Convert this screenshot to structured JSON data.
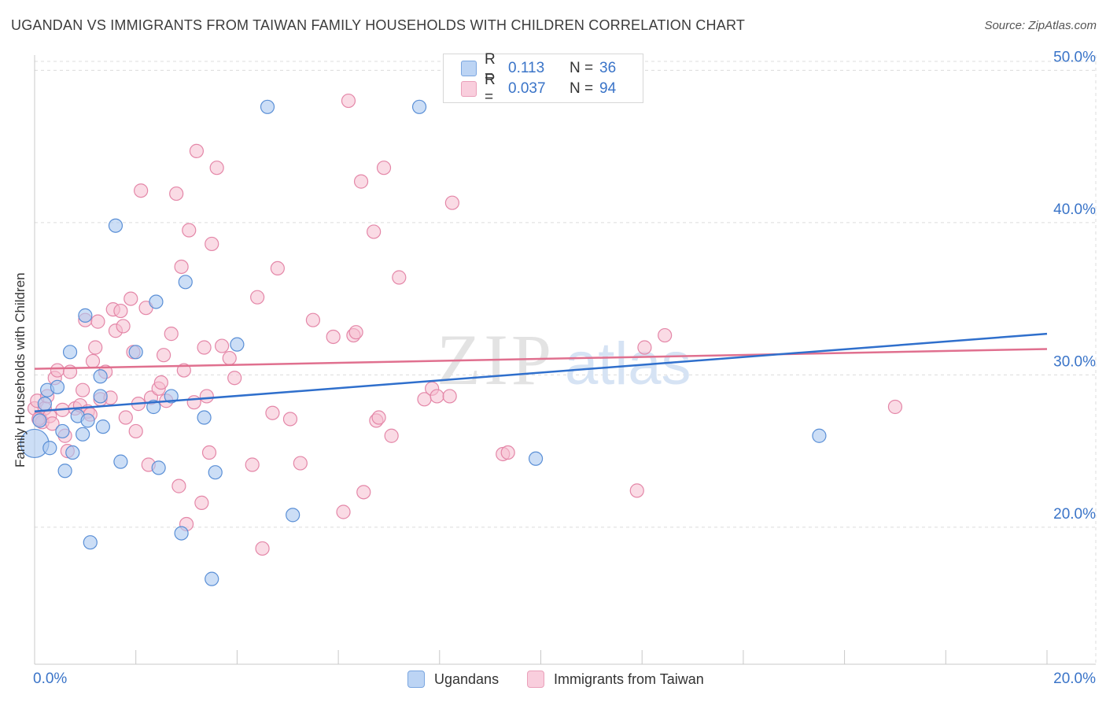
{
  "title": "UGANDAN VS IMMIGRANTS FROM TAIWAN FAMILY HOUSEHOLDS WITH CHILDREN CORRELATION CHART",
  "source": "Source: ZipAtlas.com",
  "watermark": {
    "zip": "ZIP",
    "atlas": "atlas"
  },
  "legend": {
    "ugandans": {
      "r_label": "R =",
      "r_value": "0.113",
      "n_label": "N =",
      "n_value": "36"
    },
    "taiwan": {
      "r_label": "R =",
      "r_value": "0.037",
      "n_label": "N =",
      "n_value": "94"
    }
  },
  "colors": {
    "ugandans_fill": "#aac8f0",
    "ugandans_stroke": "#5a8fd6",
    "ugandans_line": "#2f6fcc",
    "taiwan_fill": "#f6bdd0",
    "taiwan_stroke": "#e487a8",
    "taiwan_line": "#e0708f",
    "value_text": "#3a74c8",
    "grid": "#dcdcdc"
  },
  "chart_data": {
    "type": "scatter",
    "xlabel": "",
    "ylabel": "Family Households with Children",
    "xlim": [
      0,
      20
    ],
    "ylim": [
      11,
      51
    ],
    "x_ticks": [
      0,
      2,
      4,
      6,
      8,
      10,
      12,
      14,
      16,
      18,
      20
    ],
    "x_tick_labels": [
      "0.0%",
      "20.0%"
    ],
    "y_ticks": [
      20,
      30,
      40,
      50
    ],
    "y_tick_labels": [
      "20.0%",
      "30.0%",
      "40.0%",
      "50.0%"
    ],
    "grid": true,
    "legend_position": "top-center",
    "series": [
      {
        "name": "Ugandans",
        "points": [
          [
            0.0,
            25.5
          ],
          [
            0.1,
            27.0
          ],
          [
            0.2,
            28.1
          ],
          [
            0.25,
            29.0
          ],
          [
            0.3,
            25.2
          ],
          [
            0.45,
            29.2
          ],
          [
            0.55,
            26.3
          ],
          [
            0.6,
            23.7
          ],
          [
            0.7,
            31.5
          ],
          [
            0.75,
            24.9
          ],
          [
            0.85,
            27.3
          ],
          [
            0.95,
            26.1
          ],
          [
            1.0,
            33.9
          ],
          [
            1.05,
            27.0
          ],
          [
            1.1,
            19.0
          ],
          [
            1.3,
            28.6
          ],
          [
            1.3,
            29.9
          ],
          [
            1.35,
            26.6
          ],
          [
            1.7,
            24.3
          ],
          [
            1.6,
            39.8
          ],
          [
            2.0,
            31.5
          ],
          [
            2.35,
            27.9
          ],
          [
            2.4,
            34.8
          ],
          [
            2.45,
            23.9
          ],
          [
            2.7,
            28.6
          ],
          [
            2.9,
            19.6
          ],
          [
            2.98,
            36.1
          ],
          [
            3.35,
            27.2
          ],
          [
            3.5,
            16.6
          ],
          [
            3.57,
            23.6
          ],
          [
            4.0,
            32.0
          ],
          [
            4.6,
            47.6
          ],
          [
            5.1,
            20.8
          ],
          [
            7.6,
            47.6
          ],
          [
            9.9,
            24.5
          ],
          [
            15.5,
            26.0
          ]
        ]
      },
      {
        "name": "Immigrants from Taiwan",
        "points": [
          [
            0.0,
            27.8
          ],
          [
            0.05,
            28.3
          ],
          [
            0.1,
            27.2
          ],
          [
            0.15,
            26.9
          ],
          [
            0.2,
            27.8
          ],
          [
            0.3,
            27.3
          ],
          [
            0.35,
            26.8
          ],
          [
            0.4,
            29.8
          ],
          [
            0.45,
            30.3
          ],
          [
            0.55,
            27.7
          ],
          [
            0.6,
            26.0
          ],
          [
            0.65,
            25.0
          ],
          [
            0.7,
            30.2
          ],
          [
            0.8,
            27.8
          ],
          [
            0.9,
            28.0
          ],
          [
            0.95,
            29.0
          ],
          [
            1.0,
            33.6
          ],
          [
            1.05,
            27.6
          ],
          [
            1.1,
            27.4
          ],
          [
            1.15,
            30.9
          ],
          [
            1.2,
            31.8
          ],
          [
            1.25,
            33.5
          ],
          [
            1.3,
            28.4
          ],
          [
            1.4,
            30.2
          ],
          [
            1.5,
            28.5
          ],
          [
            1.55,
            34.3
          ],
          [
            1.6,
            32.9
          ],
          [
            1.7,
            34.2
          ],
          [
            1.75,
            33.2
          ],
          [
            1.8,
            27.2
          ],
          [
            1.9,
            35.0
          ],
          [
            1.95,
            31.5
          ],
          [
            2.0,
            26.3
          ],
          [
            2.05,
            28.1
          ],
          [
            2.1,
            42.1
          ],
          [
            2.2,
            34.4
          ],
          [
            2.25,
            24.1
          ],
          [
            2.3,
            28.5
          ],
          [
            2.45,
            29.1
          ],
          [
            2.5,
            29.5
          ],
          [
            2.55,
            31.3
          ],
          [
            2.6,
            28.3
          ],
          [
            2.7,
            32.7
          ],
          [
            2.8,
            41.9
          ],
          [
            2.85,
            22.7
          ],
          [
            2.9,
            37.1
          ],
          [
            2.95,
            30.3
          ],
          [
            3.0,
            20.2
          ],
          [
            3.05,
            39.5
          ],
          [
            3.15,
            28.2
          ],
          [
            3.2,
            44.7
          ],
          [
            3.3,
            21.6
          ],
          [
            3.35,
            31.8
          ],
          [
            3.4,
            28.6
          ],
          [
            3.45,
            24.9
          ],
          [
            3.5,
            38.6
          ],
          [
            3.6,
            43.6
          ],
          [
            3.7,
            31.9
          ],
          [
            3.85,
            31.1
          ],
          [
            3.95,
            29.8
          ],
          [
            4.3,
            24.1
          ],
          [
            4.4,
            35.1
          ],
          [
            4.5,
            18.6
          ],
          [
            4.7,
            27.5
          ],
          [
            4.8,
            37.0
          ],
          [
            5.05,
            27.1
          ],
          [
            5.25,
            24.2
          ],
          [
            5.5,
            33.6
          ],
          [
            5.9,
            32.5
          ],
          [
            6.1,
            21.0
          ],
          [
            6.2,
            48.0
          ],
          [
            6.3,
            32.6
          ],
          [
            6.35,
            32.8
          ],
          [
            6.45,
            42.7
          ],
          [
            6.5,
            22.3
          ],
          [
            6.7,
            39.4
          ],
          [
            6.75,
            27.0
          ],
          [
            6.8,
            27.2
          ],
          [
            6.9,
            43.6
          ],
          [
            7.05,
            26.0
          ],
          [
            7.2,
            36.4
          ],
          [
            7.7,
            28.4
          ],
          [
            7.85,
            29.1
          ],
          [
            7.95,
            28.6
          ],
          [
            8.2,
            28.6
          ],
          [
            8.25,
            41.3
          ],
          [
            9.25,
            24.8
          ],
          [
            9.35,
            24.9
          ],
          [
            11.9,
            22.4
          ],
          [
            12.05,
            31.8
          ],
          [
            12.45,
            32.6
          ],
          [
            17.0,
            27.9
          ],
          [
            0.08,
            27.1
          ],
          [
            0.25,
            28.6
          ]
        ]
      }
    ],
    "trend_lines": [
      {
        "name": "Ugandans",
        "from": [
          0,
          27.6
        ],
        "to": [
          20,
          32.7
        ]
      },
      {
        "name": "Immigrants from Taiwan",
        "from": [
          0,
          30.4
        ],
        "to": [
          20,
          31.7
        ]
      }
    ]
  }
}
